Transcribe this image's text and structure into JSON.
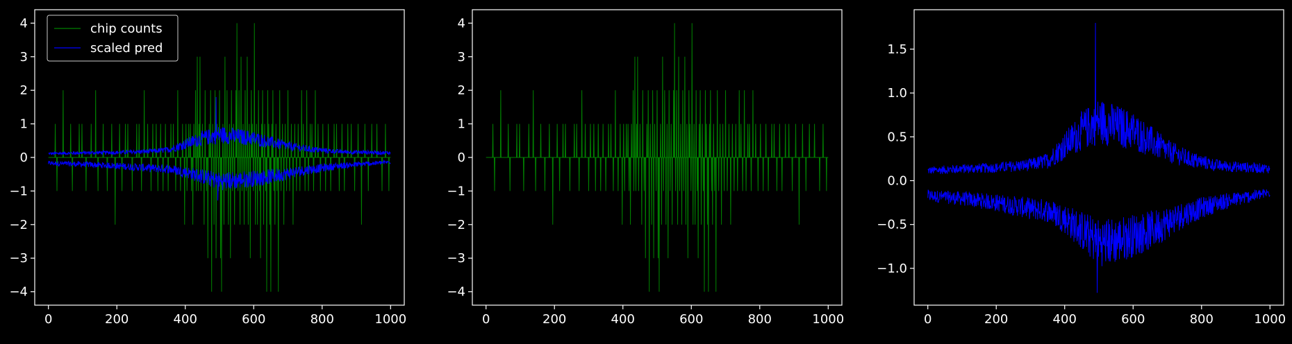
{
  "chart_data": [
    {
      "type": "line",
      "title": "",
      "xlabel": "",
      "ylabel": "",
      "xlim": [
        -40,
        1040
      ],
      "ylim": [
        -4.4,
        4.4
      ],
      "xticks": [
        0,
        200,
        400,
        600,
        800,
        1000
      ],
      "yticks": [
        -4,
        -3,
        -2,
        -1,
        0,
        1,
        2,
        3,
        4
      ],
      "grid": false,
      "legend": {
        "placement": "top-left",
        "entries": [
          {
            "label": "chip counts",
            "color": "#008000"
          },
          {
            "label": "scaled pred",
            "color": "#0000ff"
          }
        ]
      },
      "series": [
        {
          "name": "chip counts",
          "color": "#008000",
          "x_range": [
            0,
            1000
          ],
          "kind": "sparse integer spikes, zero baseline",
          "nonzero_points": [
            [
              20,
              1
            ],
            [
              25,
              -1
            ],
            [
              43,
              2
            ],
            [
              65,
              1
            ],
            [
              70,
              -1
            ],
            [
              90,
              1
            ],
            [
              98,
              1
            ],
            [
              110,
              -1
            ],
            [
              125,
              1
            ],
            [
              138,
              2
            ],
            [
              145,
              -1
            ],
            [
              160,
              1
            ],
            [
              172,
              -1
            ],
            [
              185,
              1
            ],
            [
              195,
              -2
            ],
            [
              208,
              1
            ],
            [
              215,
              -1
            ],
            [
              225,
              1
            ],
            [
              232,
              1
            ],
            [
              245,
              -1
            ],
            [
              258,
              1
            ],
            [
              265,
              1
            ],
            [
              272,
              -1
            ],
            [
              280,
              2
            ],
            [
              290,
              1
            ],
            [
              300,
              -1
            ],
            [
              305,
              1
            ],
            [
              315,
              1
            ],
            [
              320,
              -1
            ],
            [
              328,
              1
            ],
            [
              335,
              -1
            ],
            [
              342,
              1
            ],
            [
              350,
              -1
            ],
            [
              358,
              1
            ],
            [
              365,
              1
            ],
            [
              372,
              -1
            ],
            [
              378,
              2
            ],
            [
              386,
              -1
            ],
            [
              392,
              1
            ],
            [
              398,
              -2
            ],
            [
              402,
              1
            ],
            [
              405,
              -1
            ],
            [
              410,
              1
            ],
            [
              415,
              1
            ],
            [
              418,
              -1
            ],
            [
              422,
              -2
            ],
            [
              425,
              1
            ],
            [
              430,
              2
            ],
            [
              432,
              -1
            ],
            [
              435,
              3
            ],
            [
              438,
              -1
            ],
            [
              440,
              1
            ],
            [
              443,
              3
            ],
            [
              446,
              -1
            ],
            [
              450,
              1
            ],
            [
              455,
              -2
            ],
            [
              458,
              2
            ],
            [
              462,
              -1
            ],
            [
              466,
              -3
            ],
            [
              470,
              1
            ],
            [
              474,
              2
            ],
            [
              477,
              -4
            ],
            [
              480,
              1
            ],
            [
              484,
              -2
            ],
            [
              487,
              2
            ],
            [
              490,
              -3
            ],
            [
              493,
              1
            ],
            [
              497,
              -1
            ],
            [
              500,
              2
            ],
            [
              503,
              -3
            ],
            [
              506,
              -4
            ],
            [
              510,
              1
            ],
            [
              513,
              -2
            ],
            [
              516,
              3
            ],
            [
              519,
              -1
            ],
            [
              522,
              2
            ],
            [
              526,
              -2
            ],
            [
              529,
              1
            ],
            [
              532,
              -3
            ],
            [
              535,
              2
            ],
            [
              538,
              -1
            ],
            [
              541,
              1
            ],
            [
              544,
              -2
            ],
            [
              548,
              2
            ],
            [
              551,
              4
            ],
            [
              554,
              -1
            ],
            [
              557,
              2
            ],
            [
              560,
              -2
            ],
            [
              563,
              3
            ],
            [
              566,
              -1
            ],
            [
              569,
              1
            ],
            [
              572,
              -2
            ],
            [
              575,
              2
            ],
            [
              578,
              -1
            ],
            [
              581,
              3
            ],
            [
              584,
              -2
            ],
            [
              587,
              1
            ],
            [
              590,
              -3
            ],
            [
              593,
              2
            ],
            [
              596,
              1
            ],
            [
              599,
              -1
            ],
            [
              602,
              4
            ],
            [
              605,
              -2
            ],
            [
              608,
              1
            ],
            [
              611,
              -2
            ],
            [
              614,
              2
            ],
            [
              617,
              -1
            ],
            [
              620,
              -3
            ],
            [
              623,
              1
            ],
            [
              626,
              2
            ],
            [
              629,
              -2
            ],
            [
              632,
              1
            ],
            [
              635,
              -1
            ],
            [
              638,
              -4
            ],
            [
              641,
              2
            ],
            [
              644,
              1
            ],
            [
              647,
              -2
            ],
            [
              650,
              -4
            ],
            [
              653,
              1
            ],
            [
              656,
              2
            ],
            [
              659,
              -1
            ],
            [
              662,
              -2
            ],
            [
              665,
              1
            ],
            [
              668,
              -1
            ],
            [
              672,
              -4
            ],
            [
              676,
              2
            ],
            [
              680,
              -1
            ],
            [
              684,
              1
            ],
            [
              688,
              -2
            ],
            [
              692,
              1
            ],
            [
              696,
              -1
            ],
            [
              700,
              2
            ],
            [
              705,
              -1
            ],
            [
              710,
              1
            ],
            [
              715,
              -2
            ],
            [
              720,
              1
            ],
            [
              725,
              -1
            ],
            [
              730,
              1
            ],
            [
              735,
              -1
            ],
            [
              740,
              2
            ],
            [
              745,
              1
            ],
            [
              750,
              -1
            ],
            [
              755,
              2
            ],
            [
              760,
              -1
            ],
            [
              765,
              1
            ],
            [
              770,
              1
            ],
            [
              775,
              -1
            ],
            [
              780,
              2
            ],
            [
              788,
              1
            ],
            [
              795,
              -1
            ],
            [
              802,
              1
            ],
            [
              810,
              -1
            ],
            [
              818,
              1
            ],
            [
              825,
              -1
            ],
            [
              835,
              1
            ],
            [
              842,
              1
            ],
            [
              850,
              -1
            ],
            [
              858,
              1
            ],
            [
              865,
              -1
            ],
            [
              875,
              1
            ],
            [
              885,
              1
            ],
            [
              895,
              -1
            ],
            [
              905,
              1
            ],
            [
              915,
              -2
            ],
            [
              925,
              1
            ],
            [
              935,
              -1
            ],
            [
              945,
              1
            ],
            [
              960,
              1
            ],
            [
              975,
              -1
            ],
            [
              985,
              1
            ],
            [
              995,
              -1
            ]
          ]
        },
        {
          "name": "scaled pred",
          "color": "#0000ff",
          "x_range": [
            0,
            1000
          ],
          "kind": "two noisy bands (upper > 0, lower < 0), amplitude peaking near x=550",
          "upper_profile": [
            [
              0,
              0.1
            ],
            [
              100,
              0.12
            ],
            [
              200,
              0.13
            ],
            [
              300,
              0.16
            ],
            [
              350,
              0.2
            ],
            [
              400,
              0.35
            ],
            [
              450,
              0.5
            ],
            [
              500,
              0.6
            ],
            [
              550,
              0.55
            ],
            [
              600,
              0.5
            ],
            [
              650,
              0.4
            ],
            [
              700,
              0.3
            ],
            [
              760,
              0.22
            ],
            [
              850,
              0.15
            ],
            [
              1000,
              0.12
            ]
          ],
          "lower_profile": [
            [
              0,
              -0.15
            ],
            [
              100,
              -0.18
            ],
            [
              200,
              -0.22
            ],
            [
              300,
              -0.28
            ],
            [
              350,
              -0.3
            ],
            [
              400,
              -0.38
            ],
            [
              450,
              -0.5
            ],
            [
              500,
              -0.62
            ],
            [
              550,
              -0.6
            ],
            [
              600,
              -0.55
            ],
            [
              650,
              -0.5
            ],
            [
              700,
              -0.42
            ],
            [
              760,
              -0.32
            ],
            [
              850,
              -0.22
            ],
            [
              1000,
              -0.12
            ]
          ],
          "peak_points": [
            [
              490,
              1.8
            ],
            [
              495,
              -1.28
            ]
          ]
        }
      ]
    },
    {
      "type": "line",
      "title": "",
      "xlabel": "",
      "ylabel": "",
      "xlim": [
        -40,
        1040
      ],
      "ylim": [
        -4.4,
        4.4
      ],
      "xticks": [
        0,
        200,
        400,
        600,
        800,
        1000
      ],
      "yticks": [
        -4,
        -3,
        -2,
        -1,
        0,
        1,
        2,
        3,
        4
      ],
      "grid": false,
      "series": [
        {
          "ref": "chip counts",
          "color": "#008000"
        }
      ]
    },
    {
      "type": "line",
      "title": "",
      "xlabel": "",
      "ylabel": "",
      "xlim": [
        -40,
        1040
      ],
      "ylim": [
        -1.42,
        1.95
      ],
      "xticks": [
        0,
        200,
        400,
        600,
        800,
        1000
      ],
      "yticks": [
        -1.0,
        -0.5,
        0.0,
        0.5,
        1.0,
        1.5
      ],
      "ytick_labels": [
        "−1.0",
        "−0.5",
        "0.0",
        "0.5",
        "1.0",
        "1.5"
      ],
      "grid": false,
      "series": [
        {
          "ref": "scaled pred",
          "color": "#0000ff"
        }
      ]
    }
  ],
  "xtick_labels": [
    "0",
    "200",
    "400",
    "600",
    "800",
    "1000"
  ],
  "ytick_labels_int": [
    "−4",
    "−3",
    "−2",
    "−1",
    "0",
    "1",
    "2",
    "3",
    "4"
  ]
}
